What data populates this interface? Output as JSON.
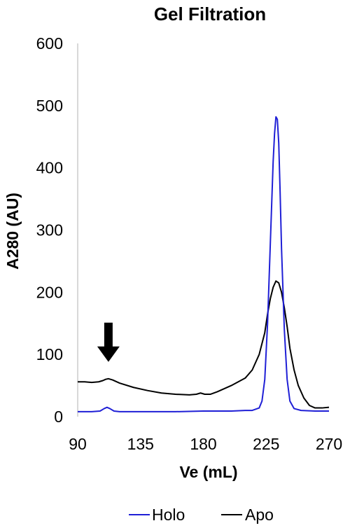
{
  "chart_data": {
    "type": "line",
    "title": "Gel Filtration",
    "xlabel": "Ve (mL)",
    "ylabel": "A280 (AU)",
    "xlim": [
      90,
      270
    ],
    "ylim": [
      0,
      600
    ],
    "xticks": [
      "90",
      "135",
      "180",
      "225",
      "270"
    ],
    "yticks": [
      "0",
      "100",
      "200",
      "300",
      "400",
      "500",
      "600"
    ],
    "grid": false,
    "legend": "bottom",
    "annotations": [
      {
        "type": "arrow",
        "x": 112,
        "y": 88,
        "direction": "down",
        "color": "#000000"
      }
    ],
    "series": [
      {
        "name": "Holo",
        "color": "#1f1fd6",
        "x": [
          90,
          100,
          106,
          109,
          111,
          113,
          116,
          120,
          140,
          160,
          180,
          200,
          210,
          215,
          220,
          222,
          224,
          226,
          228,
          230,
          231,
          232,
          233,
          234,
          235,
          236,
          238,
          240,
          242,
          245,
          250,
          260,
          270
        ],
        "y": [
          8,
          8,
          9,
          13,
          15,
          13,
          9,
          8,
          8,
          8,
          9,
          9,
          10,
          10,
          14,
          25,
          60,
          150,
          280,
          410,
          455,
          482,
          478,
          440,
          360,
          270,
          140,
          60,
          25,
          13,
          10,
          9,
          9
        ]
      },
      {
        "name": "Apo",
        "color": "#000000",
        "x": [
          90,
          95,
          100,
          105,
          108,
          110,
          112,
          115,
          120,
          130,
          140,
          150,
          160,
          170,
          175,
          178,
          181,
          185,
          190,
          200,
          210,
          215,
          220,
          224,
          226,
          228,
          230,
          232,
          234,
          236,
          238,
          240,
          242,
          245,
          248,
          252,
          256,
          260,
          265,
          270
        ],
        "y": [
          56,
          56,
          55,
          56,
          58,
          60,
          61,
          59,
          54,
          47,
          42,
          38,
          36,
          35,
          36,
          38,
          36,
          36,
          40,
          50,
          62,
          75,
          100,
          135,
          165,
          190,
          208,
          218,
          215,
          200,
          175,
          145,
          110,
          75,
          50,
          30,
          18,
          14,
          14,
          15
        ]
      }
    ]
  }
}
